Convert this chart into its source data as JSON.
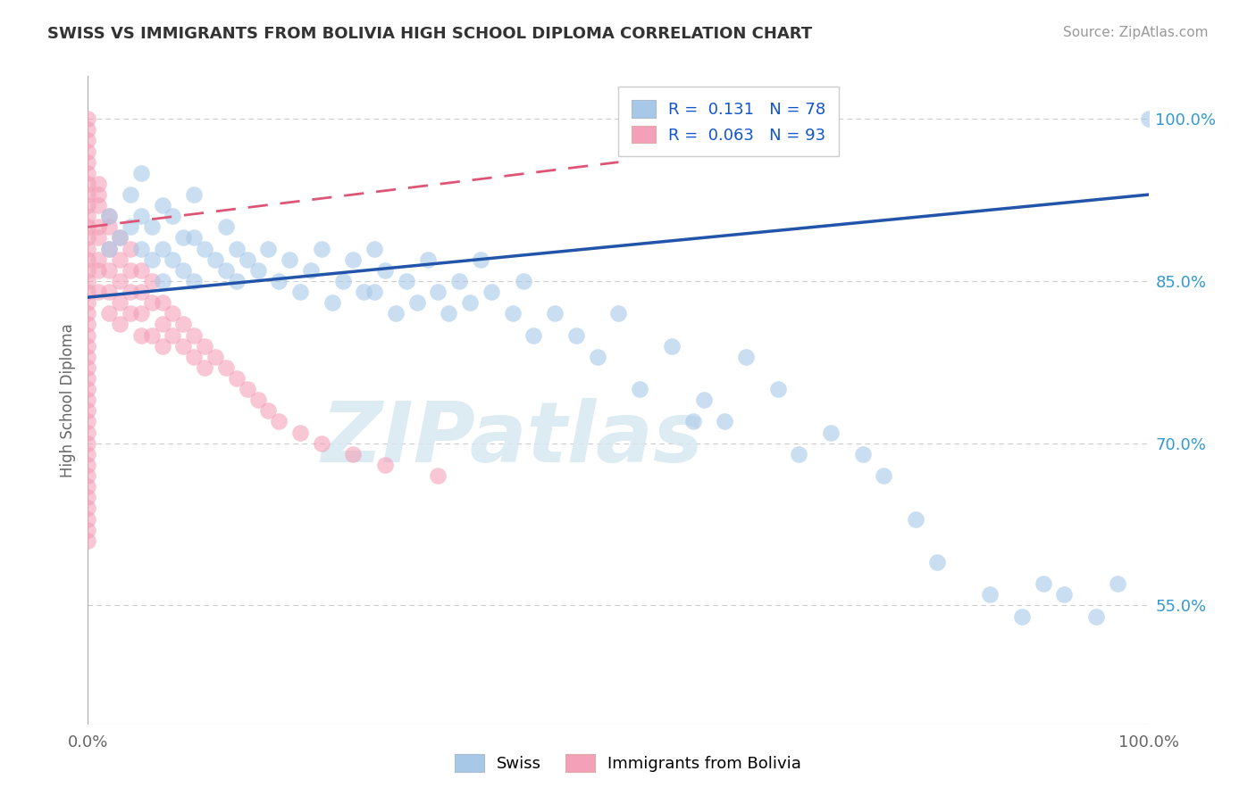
{
  "title": "SWISS VS IMMIGRANTS FROM BOLIVIA HIGH SCHOOL DIPLOMA CORRELATION CHART",
  "source": "Source: ZipAtlas.com",
  "ylabel": "High School Diploma",
  "xlim": [
    0.0,
    1.0
  ],
  "ylim": [
    0.44,
    1.04
  ],
  "right_yticks": [
    0.55,
    0.7,
    0.85,
    1.0
  ],
  "right_yticklabels": [
    "55.0%",
    "70.0%",
    "85.0%",
    "100.0%"
  ],
  "legend_swiss_R": "0.131",
  "legend_swiss_N": "78",
  "legend_bolivia_R": "0.063",
  "legend_bolivia_N": "93",
  "swiss_color": "#a8c8e8",
  "bolivia_color": "#f4a0b8",
  "swiss_line_color": "#2255aa",
  "bolivia_line_color": "#dd5577",
  "grid_color": "#cccccc",
  "background_color": "#ffffff",
  "swiss_trend_x0": 0.0,
  "swiss_trend_x1": 1.0,
  "swiss_trend_y0": 0.835,
  "swiss_trend_y1": 0.93,
  "bolivia_trend_x0": 0.0,
  "bolivia_trend_x1": 0.5,
  "bolivia_trend_y0": 0.9,
  "bolivia_trend_y1": 0.96,
  "title_color": "#333333",
  "source_color": "#999999",
  "axis_label_color": "#666666",
  "right_tick_color": "#3399cc",
  "xtick_color": "#666666",
  "watermark_text": "ZIPatlas",
  "legend_label_swiss": "R =  0.131   N = 78",
  "legend_label_bolivia": "R =  0.063   N = 93",
  "legend_text_color": "#1155cc",
  "bottom_legend_swiss": "Swiss",
  "bottom_legend_bolivia": "Immigrants from Bolivia",
  "swiss_x": [
    0.02,
    0.02,
    0.03,
    0.04,
    0.04,
    0.05,
    0.05,
    0.05,
    0.06,
    0.06,
    0.07,
    0.07,
    0.07,
    0.08,
    0.08,
    0.09,
    0.09,
    0.1,
    0.1,
    0.1,
    0.11,
    0.12,
    0.13,
    0.13,
    0.14,
    0.14,
    0.15,
    0.16,
    0.17,
    0.18,
    0.19,
    0.2,
    0.21,
    0.22,
    0.23,
    0.24,
    0.25,
    0.26,
    0.27,
    0.27,
    0.28,
    0.29,
    0.3,
    0.31,
    0.32,
    0.33,
    0.34,
    0.35,
    0.36,
    0.37,
    0.38,
    0.4,
    0.41,
    0.42,
    0.44,
    0.46,
    0.48,
    0.5,
    0.52,
    0.55,
    0.57,
    0.58,
    0.6,
    0.62,
    0.65,
    0.67,
    0.7,
    0.73,
    0.75,
    0.78,
    0.8,
    0.85,
    0.88,
    0.9,
    0.92,
    0.95,
    0.97,
    1.0
  ],
  "swiss_y": [
    0.91,
    0.88,
    0.89,
    0.93,
    0.9,
    0.91,
    0.88,
    0.95,
    0.87,
    0.9,
    0.92,
    0.88,
    0.85,
    0.91,
    0.87,
    0.89,
    0.86,
    0.93,
    0.89,
    0.85,
    0.88,
    0.87,
    0.9,
    0.86,
    0.88,
    0.85,
    0.87,
    0.86,
    0.88,
    0.85,
    0.87,
    0.84,
    0.86,
    0.88,
    0.83,
    0.85,
    0.87,
    0.84,
    0.88,
    0.84,
    0.86,
    0.82,
    0.85,
    0.83,
    0.87,
    0.84,
    0.82,
    0.85,
    0.83,
    0.87,
    0.84,
    0.82,
    0.85,
    0.8,
    0.82,
    0.8,
    0.78,
    0.82,
    0.75,
    0.79,
    0.72,
    0.74,
    0.72,
    0.78,
    0.75,
    0.69,
    0.71,
    0.69,
    0.67,
    0.63,
    0.59,
    0.56,
    0.54,
    0.57,
    0.56,
    0.54,
    0.57,
    1.0
  ],
  "bolivia_x": [
    0.0,
    0.0,
    0.0,
    0.0,
    0.0,
    0.0,
    0.0,
    0.0,
    0.0,
    0.0,
    0.0,
    0.0,
    0.0,
    0.0,
    0.0,
    0.0,
    0.0,
    0.0,
    0.0,
    0.0,
    0.0,
    0.0,
    0.0,
    0.0,
    0.0,
    0.0,
    0.0,
    0.0,
    0.0,
    0.0,
    0.0,
    0.0,
    0.0,
    0.0,
    0.0,
    0.0,
    0.0,
    0.0,
    0.0,
    0.0,
    0.01,
    0.01,
    0.01,
    0.01,
    0.01,
    0.01,
    0.01,
    0.01,
    0.02,
    0.02,
    0.02,
    0.02,
    0.02,
    0.02,
    0.03,
    0.03,
    0.03,
    0.03,
    0.03,
    0.04,
    0.04,
    0.04,
    0.04,
    0.05,
    0.05,
    0.05,
    0.05,
    0.06,
    0.06,
    0.06,
    0.07,
    0.07,
    0.07,
    0.08,
    0.08,
    0.09,
    0.09,
    0.1,
    0.1,
    0.11,
    0.11,
    0.12,
    0.13,
    0.14,
    0.15,
    0.16,
    0.17,
    0.18,
    0.2,
    0.22,
    0.25,
    0.28,
    0.33
  ],
  "bolivia_y": [
    1.0,
    0.99,
    0.98,
    0.97,
    0.96,
    0.95,
    0.94,
    0.93,
    0.92,
    0.91,
    0.9,
    0.89,
    0.88,
    0.87,
    0.86,
    0.85,
    0.84,
    0.83,
    0.82,
    0.81,
    0.8,
    0.79,
    0.78,
    0.77,
    0.76,
    0.75,
    0.74,
    0.73,
    0.72,
    0.71,
    0.7,
    0.69,
    0.68,
    0.67,
    0.66,
    0.65,
    0.64,
    0.63,
    0.62,
    0.61,
    0.94,
    0.93,
    0.92,
    0.9,
    0.89,
    0.87,
    0.86,
    0.84,
    0.91,
    0.9,
    0.88,
    0.86,
    0.84,
    0.82,
    0.89,
    0.87,
    0.85,
    0.83,
    0.81,
    0.88,
    0.86,
    0.84,
    0.82,
    0.86,
    0.84,
    0.82,
    0.8,
    0.85,
    0.83,
    0.8,
    0.83,
    0.81,
    0.79,
    0.82,
    0.8,
    0.81,
    0.79,
    0.8,
    0.78,
    0.79,
    0.77,
    0.78,
    0.77,
    0.76,
    0.75,
    0.74,
    0.73,
    0.72,
    0.71,
    0.7,
    0.69,
    0.68,
    0.67
  ]
}
